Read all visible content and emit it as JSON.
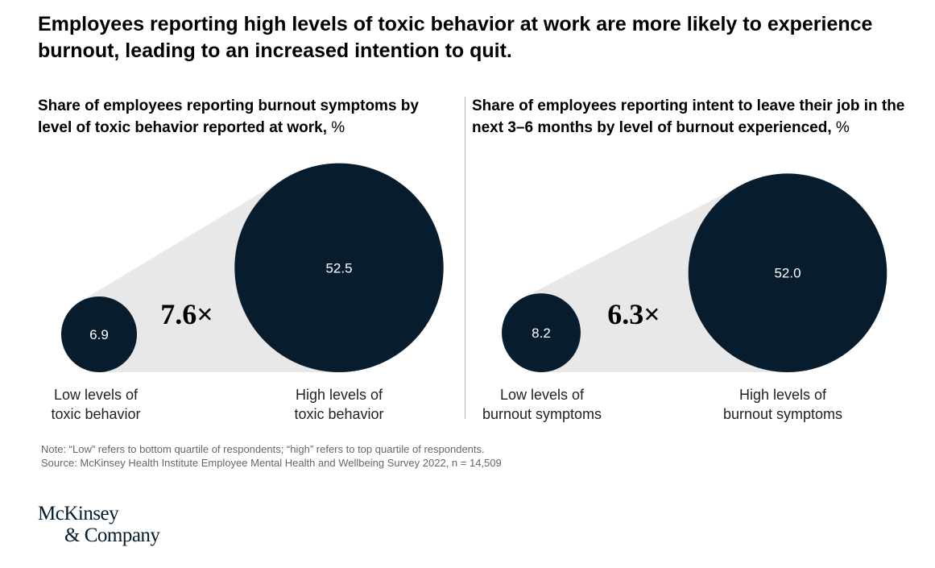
{
  "title": "Employees reporting high levels of toxic behavior at work are more likely to experience burnout, leading to an increased intention to quit.",
  "colors": {
    "circle": "#071d2e",
    "cone": "#e8e8e8",
    "circle_text": "#ffffff"
  },
  "chart_data": [
    {
      "type": "bubble",
      "subtitle": "Share of employees reporting burnout symptoms by level of toxic behavior reported at work,",
      "unit": "%",
      "categories": [
        "Low levels of toxic behavior",
        "High levels of toxic behavior"
      ],
      "labels": [
        [
          "Low levels of",
          "toxic behavior"
        ],
        [
          "High levels of",
          "toxic behavior"
        ]
      ],
      "values": [
        6.9,
        52.5
      ],
      "value_labels": [
        "6.9",
        "52.5"
      ],
      "ratio_label": "7.6×"
    },
    {
      "type": "bubble",
      "subtitle": "Share of employees reporting intent to leave their job in the next 3–6 months by level of burnout experienced,",
      "unit": "%",
      "categories": [
        "Low levels of burnout symptoms",
        "High levels of burnout symptoms"
      ],
      "labels": [
        [
          "Low levels of",
          "burnout symptoms"
        ],
        [
          "High levels of",
          "burnout symptoms"
        ]
      ],
      "values": [
        8.2,
        52.0
      ],
      "value_labels": [
        "8.2",
        "52.0"
      ],
      "ratio_label": "6.3×"
    }
  ],
  "note": "Note: “Low” refers to bottom quartile of respondents; “high” refers to top quartile of respondents.",
  "source": "Source: McKinsey Health Institute Employee Mental Health and Wellbeing Survey 2022, n = 14,509",
  "logo": {
    "line1": "McKinsey",
    "line2": "& Company"
  }
}
